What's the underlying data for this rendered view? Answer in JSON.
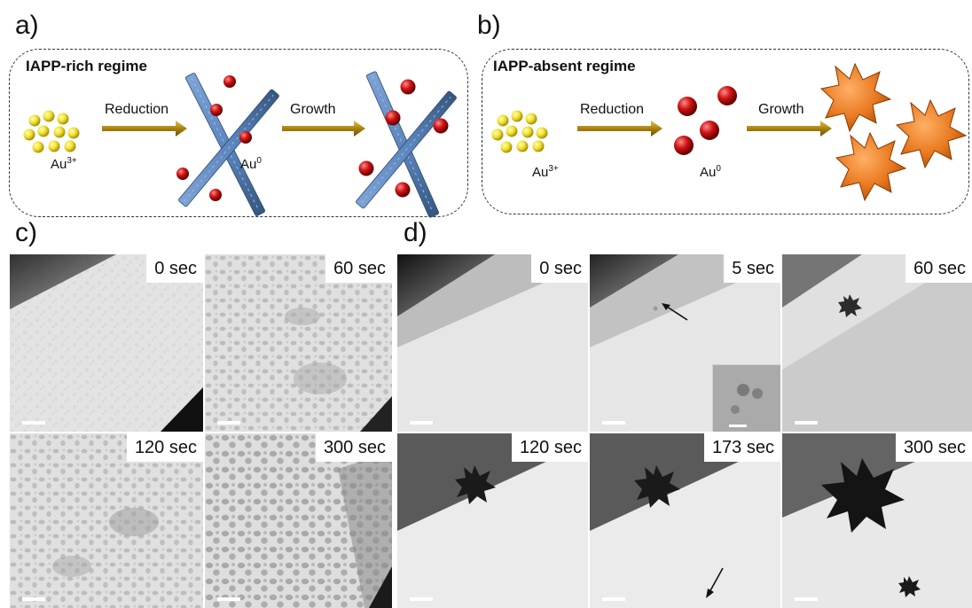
{
  "panels": {
    "a": {
      "label": "a)",
      "title": "IAPP-rich regime",
      "step1": "Reduction",
      "step2": "Growth",
      "precursor": "Au",
      "precursor_sup": "3+",
      "product": "Au",
      "product_sup": "0"
    },
    "b": {
      "label": "b)",
      "title": "IAPP-absent regime",
      "step1": "Reduction",
      "step2": "Growth",
      "precursor": "Au",
      "precursor_sup": "3+",
      "product": "Au",
      "product_sup": "0"
    },
    "c": {
      "label": "c)",
      "frames": [
        {
          "time": "0 sec"
        },
        {
          "time": "60 sec"
        },
        {
          "time": "120 sec"
        },
        {
          "time": "300 sec"
        }
      ]
    },
    "d": {
      "label": "d)",
      "frames": [
        {
          "time": "0 sec"
        },
        {
          "time": "5 sec"
        },
        {
          "time": "60 sec"
        },
        {
          "time": "120 sec"
        },
        {
          "time": "173 sec"
        },
        {
          "time": "300 sec"
        }
      ]
    }
  },
  "colors": {
    "au3_particle": "#f0e030",
    "au0_particle": "#cc1111",
    "fibril": "#5a84bb",
    "arrow": "#9a7a10",
    "star": "#e8781e"
  }
}
